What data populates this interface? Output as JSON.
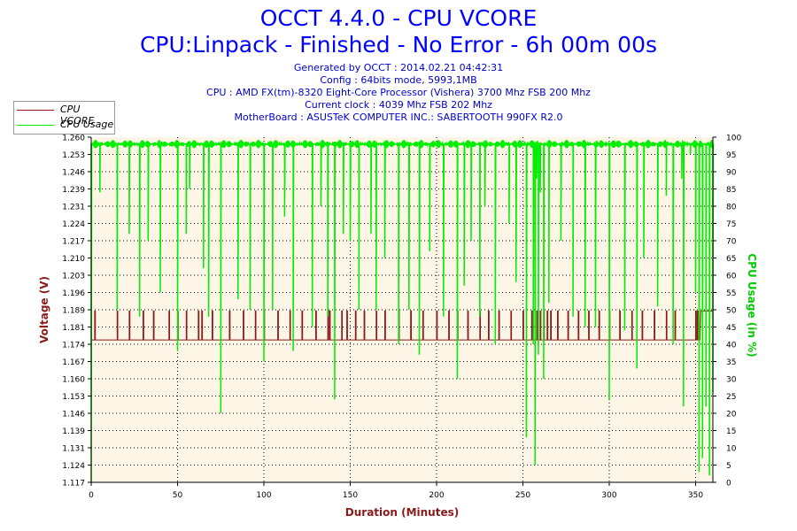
{
  "header": {
    "title": "OCCT 4.4.0 - CPU VCORE",
    "subtitle": "CPU:Linpack - Finished - No Error - 6h 00m 00s",
    "info_lines": [
      "Generated by OCCT : 2014.02.21 04:42:31",
      "Config : 64bits mode, 5993,1MB",
      "CPU : AMD FX(tm)-8320 Eight-Core Processor (Vishera) 3700 Mhz FSB 200 Mhz",
      "Current clock : 4039 Mhz FSB 202 Mhz",
      "MotherBoard : ASUSTeK COMPUTER INC.: SABERTOOTH 990FX R2.0"
    ]
  },
  "legend": {
    "placement": "top-left",
    "items": [
      {
        "label": "CPU VCORE",
        "color": "#8b1a1a"
      },
      {
        "label": "CPU Usage",
        "color": "#00ee00"
      }
    ]
  },
  "chart_data": {
    "type": "line",
    "xlabel": "Duration (Minutes)",
    "ylabel_left": "Voltage (V)",
    "ylabel_right": "CPU Usage (in %)",
    "xlim": [
      0,
      360
    ],
    "ylim_left": [
      1.117,
      1.26
    ],
    "ylim_right": [
      0,
      100
    ],
    "x_ticks": [
      0,
      50,
      100,
      150,
      200,
      250,
      300,
      350
    ],
    "y_ticks_left": [
      "1.260",
      "1.253",
      "1.246",
      "1.239",
      "1.231",
      "1.224",
      "1.217",
      "1.210",
      "1.203",
      "1.196",
      "1.189",
      "1.181",
      "1.174",
      "1.167",
      "1.160",
      "1.153",
      "1.146",
      "1.139",
      "1.131",
      "1.124",
      "1.117"
    ],
    "y_ticks_right": [
      100,
      95,
      90,
      85,
      80,
      75,
      70,
      65,
      60,
      55,
      50,
      45,
      40,
      35,
      30,
      25,
      20,
      15,
      10,
      5,
      0
    ],
    "grid": true,
    "colors": {
      "vcore": "#8b1a1a",
      "usage": "#00ee00",
      "plot_bg": "#fdf5e6",
      "axis_label": "#8b1a1a",
      "right_label": "#00cc00"
    },
    "series": [
      {
        "name": "CPU VCORE",
        "baseline": 1.176,
        "peak": 1.188,
        "spike_minutes": [
          2,
          15,
          22,
          30,
          36,
          45,
          50,
          55,
          62,
          64,
          70,
          80,
          88,
          95,
          100,
          108,
          115,
          122,
          130,
          137,
          138,
          145,
          148,
          153,
          158,
          165,
          170,
          178,
          185,
          192,
          200,
          207,
          212,
          218,
          225,
          230,
          236,
          243,
          250,
          255,
          258,
          260,
          262,
          264,
          266,
          270,
          276,
          282,
          288,
          294,
          300,
          306,
          313,
          319,
          326,
          333,
          338,
          350,
          351
        ],
        "end_level_from_minute": 353
      },
      {
        "name": "CPU Usage",
        "baseline_percent": 98,
        "dips": [
          [
            0,
            0
          ],
          [
            5,
            84
          ],
          [
            15,
            50
          ],
          [
            22,
            72
          ],
          [
            28,
            48
          ],
          [
            33,
            70
          ],
          [
            40,
            55
          ],
          [
            50,
            38
          ],
          [
            55,
            72
          ],
          [
            57,
            85
          ],
          [
            65,
            62
          ],
          [
            68,
            48
          ],
          [
            75,
            20
          ],
          [
            85,
            53
          ],
          [
            92,
            50
          ],
          [
            100,
            35
          ],
          [
            105,
            50
          ],
          [
            112,
            77
          ],
          [
            117,
            38
          ],
          [
            128,
            45
          ],
          [
            133,
            80
          ],
          [
            137,
            48
          ],
          [
            141,
            24
          ],
          [
            146,
            72
          ],
          [
            150,
            70
          ],
          [
            155,
            50
          ],
          [
            162,
            72
          ],
          [
            165,
            50
          ],
          [
            170,
            65
          ],
          [
            178,
            40
          ],
          [
            184,
            50
          ],
          [
            190,
            37
          ],
          [
            196,
            67
          ],
          [
            204,
            48
          ],
          [
            212,
            30
          ],
          [
            216,
            57
          ],
          [
            220,
            70
          ],
          [
            225,
            48
          ],
          [
            228,
            80
          ],
          [
            234,
            40
          ],
          [
            242,
            75
          ],
          [
            246,
            58
          ],
          [
            252,
            13
          ],
          [
            256,
            40
          ],
          [
            257,
            5
          ],
          [
            258,
            88
          ],
          [
            259,
            37
          ],
          [
            260,
            84
          ],
          [
            262,
            30
          ],
          [
            265,
            52
          ],
          [
            272,
            70
          ],
          [
            279,
            48
          ],
          [
            286,
            45
          ],
          [
            292,
            45
          ],
          [
            300,
            24
          ],
          [
            309,
            44
          ],
          [
            316,
            33
          ],
          [
            320,
            65
          ],
          [
            328,
            51
          ],
          [
            333,
            83
          ],
          [
            337,
            40
          ],
          [
            342,
            88
          ],
          [
            343,
            22
          ],
          [
            347,
            95
          ],
          [
            350,
            55
          ],
          [
            352,
            3
          ],
          [
            354,
            7
          ],
          [
            356,
            22
          ],
          [
            358,
            2
          ],
          [
            360,
            26
          ]
        ]
      }
    ]
  }
}
